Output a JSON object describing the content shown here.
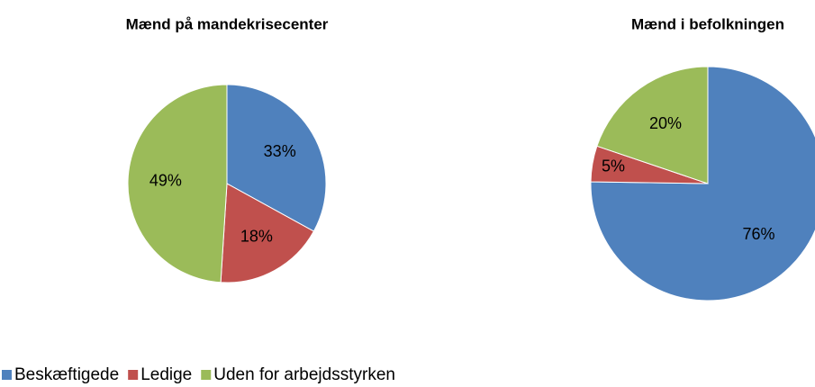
{
  "chart_data": [
    {
      "type": "pie",
      "title": "Mænd på mandekrisecenter",
      "categories": [
        "Beskæftigede",
        "Ledige",
        "Uden for arbejdsstyrken"
      ],
      "values": [
        33,
        18,
        49
      ],
      "value_labels": [
        "33%",
        "18%",
        "49%"
      ],
      "colors": [
        "#4f81bd",
        "#c0504d",
        "#9bbb59"
      ],
      "legend": "bottom"
    },
    {
      "type": "pie",
      "title": "Mænd i befolkningen",
      "categories": [
        "Beskæftigede",
        "Ledige",
        "Uden for arbejdsstyrken"
      ],
      "values": [
        76,
        5,
        20
      ],
      "value_labels": [
        "76%",
        "5%",
        "20%"
      ],
      "colors": [
        "#4f81bd",
        "#c0504d",
        "#9bbb59"
      ]
    }
  ]
}
